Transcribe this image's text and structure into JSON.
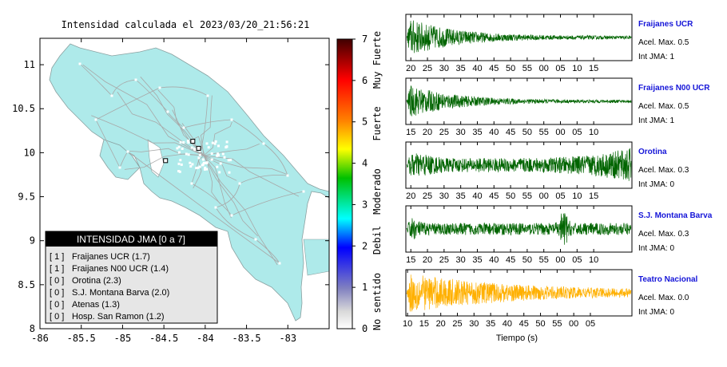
{
  "map": {
    "title": "Intensidad calculada el 2023/03/20_21:56:21",
    "x_ticks": [
      "-86",
      "-85.5",
      "-85",
      "-84.5",
      "-84",
      "-83.5",
      "-83"
    ],
    "y_ticks": [
      "11",
      "10.5",
      "10",
      "9.5",
      "9",
      "8.5",
      "8"
    ],
    "xlim": [
      -86,
      -82.5
    ],
    "ylim": [
      8,
      11.3
    ],
    "land_color": "#aeeaea",
    "station_markers": [
      {
        "lon": -84.15,
        "lat": 10.13
      },
      {
        "lon": -84.08,
        "lat": 10.05
      },
      {
        "lon": -84.48,
        "lat": 9.91
      }
    ],
    "legend": {
      "title": "INTENSIDAD JMA [0 a 7]",
      "items": [
        {
          "level": "[ 1 ]",
          "label": "Fraijanes UCR (1.7)"
        },
        {
          "level": "[ 1 ]",
          "label": "Fraijanes N00 UCR (1.4)"
        },
        {
          "level": "[ 0 ]",
          "label": "Orotina (2.3)"
        },
        {
          "level": "[ 0 ]",
          "label": "S.J. Montana Barva (2.0)"
        },
        {
          "level": "[ 0 ]",
          "label": "Atenas (1.3)"
        },
        {
          "level": "[ 0 ]",
          "label": "Hosp. San Ramon (1.2)"
        }
      ]
    }
  },
  "colorbar": {
    "ticks": [
      "7",
      "6",
      "5",
      "4",
      "3",
      "2",
      "1",
      "0"
    ],
    "labels": [
      "Muy Fuerte",
      "Fuerte",
      "Moderado",
      "Debil",
      "No sentido"
    ]
  },
  "chart_data": {
    "type": "line",
    "xlabel": "Tiempo (s)",
    "series": [
      {
        "name": "Fraijanes UCR",
        "accel_label": "Acel. Max. 0.5",
        "int_label": "Int JMA: 1",
        "color": "#006400",
        "ticks": [
          "20",
          "25",
          "30",
          "35",
          "40",
          "45",
          "50",
          "55",
          "00",
          "05",
          "10",
          "15"
        ],
        "tick_start": 20,
        "t_start": 18.5,
        "shape": "decay",
        "amp": 1.0
      },
      {
        "name": "Fraijanes N00 UCR",
        "accel_label": "Acel. Max. 0.5",
        "int_label": "Int JMA: 1",
        "color": "#006400",
        "ticks": [
          "15",
          "20",
          "25",
          "30",
          "35",
          "40",
          "45",
          "50",
          "55",
          "00",
          "05",
          "10"
        ],
        "tick_start": 15,
        "t_start": 13.5,
        "shape": "decay",
        "amp": 0.85
      },
      {
        "name": "Orotina",
        "accel_label": "Acel. Max. 0.3",
        "int_label": "Int JMA: 0",
        "color": "#006400",
        "ticks": [
          "20",
          "25",
          "30",
          "35",
          "40",
          "45",
          "50",
          "55",
          "00",
          "05",
          "10",
          "15"
        ],
        "tick_start": 20,
        "t_start": 18.5,
        "shape": "bothends",
        "amp": 1.0
      },
      {
        "name": "S.J. Montana Barva",
        "accel_label": "Acel. Max. 0.3",
        "int_label": "Int JMA: 0",
        "color": "#006400",
        "ticks": [
          "15",
          "20",
          "25",
          "30",
          "35",
          "40",
          "45",
          "50",
          "55",
          "00",
          "05",
          "10"
        ],
        "tick_start": 15,
        "t_start": 13.5,
        "shape": "burst",
        "amp": 1.0
      },
      {
        "name": "Teatro Nacional",
        "accel_label": "Acel. Max. 0.0",
        "int_label": "Int JMA: 0",
        "color": "#ffb000",
        "ticks": [
          "10",
          "15",
          "20",
          "25",
          "30",
          "35",
          "40",
          "45",
          "50",
          "55",
          "00",
          "05"
        ],
        "tick_start": 10,
        "t_start": 9.5,
        "shape": "decay_slow",
        "amp": 1.0
      }
    ]
  }
}
